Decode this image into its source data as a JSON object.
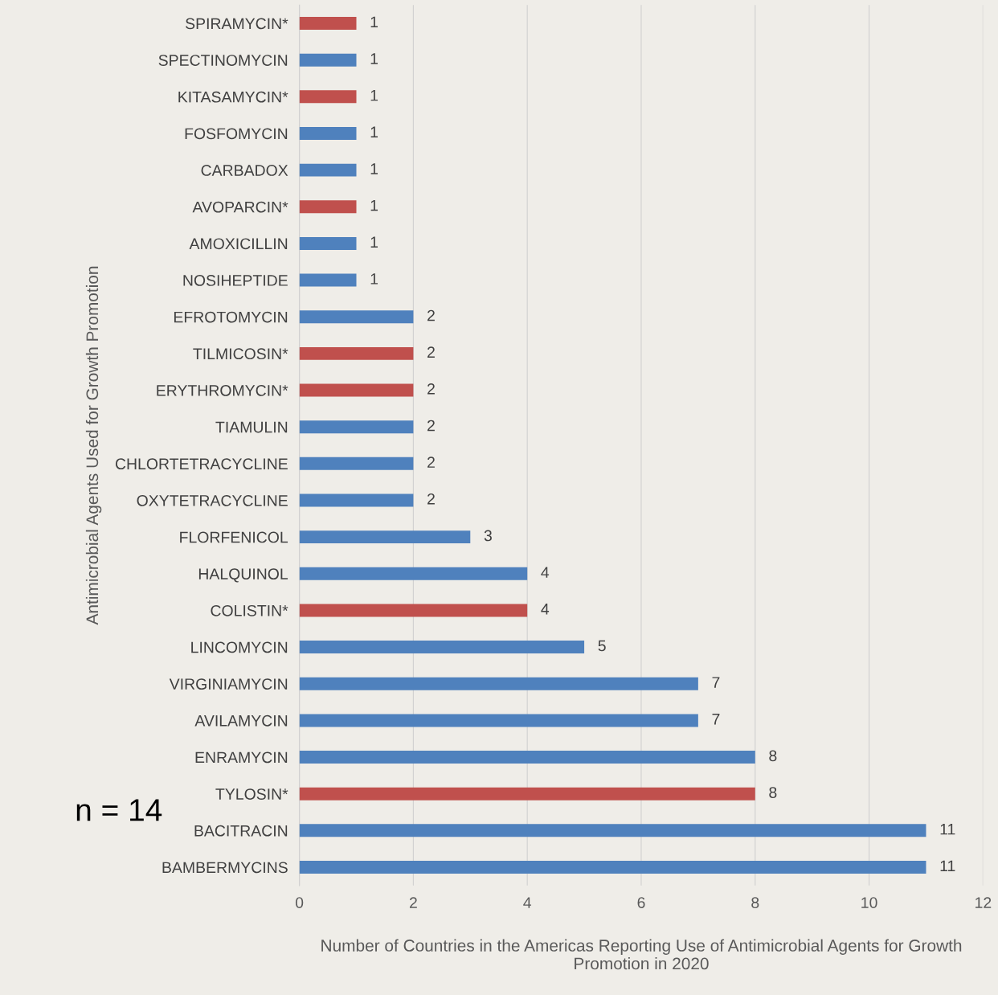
{
  "chart_data": {
    "type": "bar",
    "orientation": "horizontal",
    "ylabel": "Antimicrobial Agents Used for Growth Promotion",
    "xlabel": "Number of Countries in the Americas Reporting Use of Antimicrobial Agents for Growth Promotion in 2020",
    "categories": [
      "SPIRAMYCIN*",
      "SPECTINOMYCIN",
      "KITASAMYCIN*",
      "FOSFOMYCIN",
      "CARBADOX",
      "AVOPARCIN*",
      "AMOXICILLIN",
      "NOSIHEPTIDE",
      "EFROTOMYCIN",
      "TILMICOSIN*",
      "ERYTHROMYCIN*",
      "TIAMULIN",
      "CHLORTETRACYCLINE",
      "OXYTETRACYCLINE",
      "FLORFENICOL",
      "HALQUINOL",
      "COLISTIN*",
      "LINCOMYCIN",
      "VIRGINIAMYCIN",
      "AVILAMYCIN",
      "ENRAMYCIN",
      "TYLOSIN*",
      "BACITRACIN",
      "BAMBERMYCINS"
    ],
    "values": [
      1,
      1,
      1,
      1,
      1,
      1,
      1,
      1,
      2,
      2,
      2,
      2,
      2,
      2,
      3,
      4,
      4,
      5,
      7,
      7,
      8,
      8,
      11,
      11
    ],
    "colors": [
      "#c0504d",
      "#4f81bd",
      "#c0504d",
      "#4f81bd",
      "#4f81bd",
      "#c0504d",
      "#4f81bd",
      "#4f81bd",
      "#4f81bd",
      "#c0504d",
      "#c0504d",
      "#4f81bd",
      "#4f81bd",
      "#4f81bd",
      "#4f81bd",
      "#4f81bd",
      "#c0504d",
      "#4f81bd",
      "#4f81bd",
      "#4f81bd",
      "#4f81bd",
      "#c0504d",
      "#4f81bd",
      "#4f81bd"
    ],
    "xlim": [
      0,
      12
    ],
    "xticks": [
      0,
      2,
      4,
      6,
      8,
      10,
      12
    ],
    "grid": "x",
    "data_labels": true,
    "annotations": [
      "n = 14"
    ]
  }
}
